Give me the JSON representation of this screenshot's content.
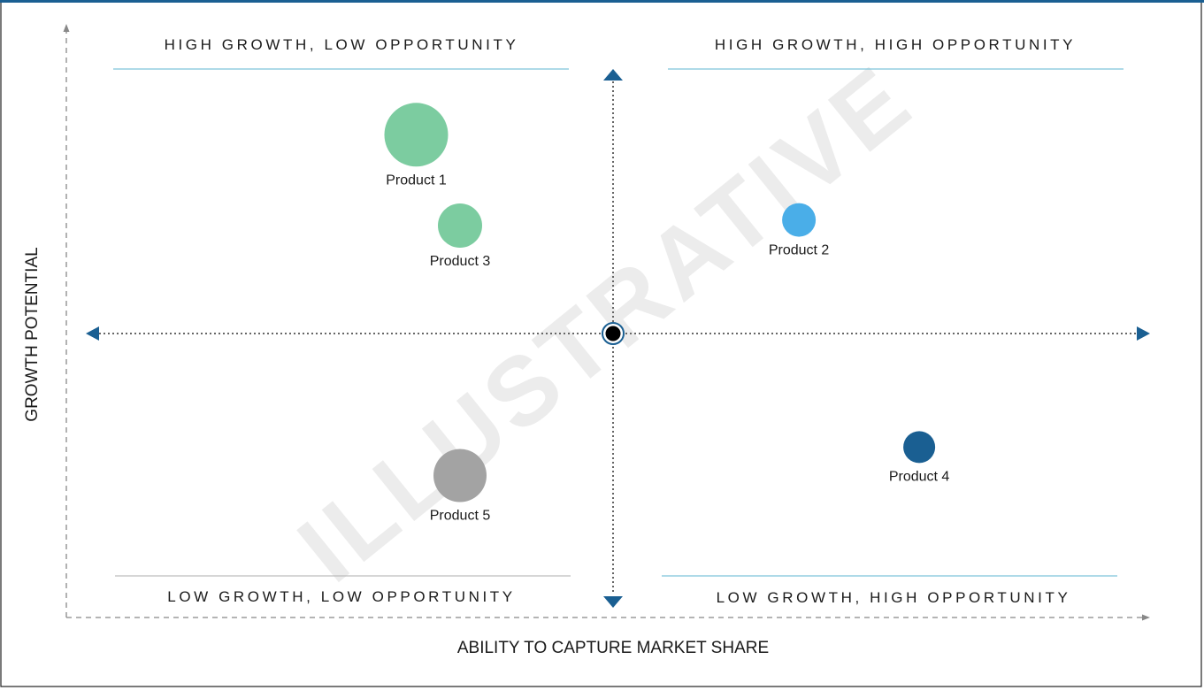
{
  "chart_data": {
    "type": "scatter",
    "title": "",
    "xlabel": "ABILITY TO CAPTURE MARKET SHARE",
    "ylabel": "GROWTH POTENTIAL",
    "xlim": [
      0,
      10
    ],
    "ylim": [
      0,
      10
    ],
    "midpoint": [
      5,
      5
    ],
    "watermark": "ILLUSTRATIVE",
    "quadrants": {
      "top_left": "HIGH GROWTH, LOW OPPORTUNITY",
      "top_right": "HIGH GROWTH, HIGH OPPORTUNITY",
      "bottom_left": "LOW GROWTH, LOW OPPORTUNITY",
      "bottom_right": "LOW GROWTH, HIGH OPPORTUNITY"
    },
    "points": [
      {
        "label": "Product 1",
        "x": 3.2,
        "y": 8.5,
        "size": 36,
        "color": "#7ccca0"
      },
      {
        "label": "Product 3",
        "x": 3.6,
        "y": 6.9,
        "size": 25,
        "color": "#7ccca0"
      },
      {
        "label": "Product 2",
        "x": 6.7,
        "y": 7.0,
        "size": 19,
        "color": "#4aaee8"
      },
      {
        "label": "Product 5",
        "x": 3.6,
        "y": 2.5,
        "size": 30,
        "color": "#a3a3a3"
      },
      {
        "label": "Product 4",
        "x": 7.8,
        "y": 3.0,
        "size": 18,
        "color": "#1a5f92"
      }
    ],
    "colors": {
      "frame": "#1a5f92",
      "arrow": "#1a5f92",
      "axis": "#888888",
      "quadrant_line_blue": "#7dc3d9",
      "quadrant_line_gray": "#bdbdbd"
    }
  }
}
